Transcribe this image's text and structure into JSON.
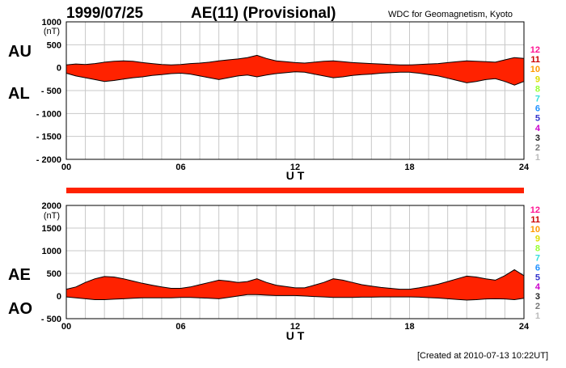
{
  "header": {
    "date": "1999/07/25",
    "title": "AE(11) (Provisional)",
    "source": "WDC for Geomagnetism, Kyoto"
  },
  "footer": {
    "created": "[Created at 2010-07-13 10:22UT]"
  },
  "station_legend": {
    "labels": [
      "12",
      "11",
      "10",
      "9",
      "8",
      "7",
      "6",
      "5",
      "4",
      "3",
      "2",
      "1"
    ],
    "colors": [
      "#ff1493",
      "#cc0000",
      "#ff9900",
      "#dddd00",
      "#99ff33",
      "#33dddd",
      "#1e90ff",
      "#3333cc",
      "#cc00cc",
      "#222222",
      "#777777",
      "#bbbbbb"
    ]
  },
  "chart_data": [
    {
      "type": "area",
      "panel": "AU/AL",
      "side_labels": [
        "AU",
        "AL"
      ],
      "unit_label": "(nT)",
      "xlabel": "U T",
      "x_ticks": [
        "00",
        "06",
        "12",
        "18",
        "24"
      ],
      "xlim": [
        0,
        24
      ],
      "ylim": [
        -2000,
        1000
      ],
      "y_ticks": [
        "1000",
        "500",
        "0",
        "- 500",
        "- 1000",
        "- 1500",
        "- 2000"
      ],
      "y_tick_values": [
        1000,
        500,
        0,
        -500,
        -1000,
        -1500,
        -2000
      ],
      "grid": true,
      "fill_color": "#ff2200",
      "x": [
        0,
        0.5,
        1,
        1.5,
        2,
        2.5,
        3,
        3.5,
        4,
        4.5,
        5,
        5.5,
        6,
        6.5,
        7,
        7.5,
        8,
        8.5,
        9,
        9.5,
        10,
        10.5,
        11,
        11.5,
        12,
        12.5,
        13,
        13.5,
        14,
        14.5,
        15,
        15.5,
        16,
        16.5,
        17,
        17.5,
        18,
        18.5,
        19,
        19.5,
        20,
        20.5,
        21,
        21.5,
        22,
        22.5,
        23,
        23.5,
        24
      ],
      "series": [
        {
          "name": "AU",
          "values": [
            60,
            80,
            70,
            90,
            120,
            140,
            150,
            140,
            110,
            90,
            70,
            60,
            70,
            90,
            100,
            120,
            150,
            170,
            190,
            220,
            270,
            200,
            150,
            130,
            110,
            100,
            120,
            140,
            150,
            130,
            110,
            100,
            90,
            80,
            70,
            60,
            60,
            70,
            80,
            90,
            110,
            130,
            150,
            140,
            130,
            120,
            170,
            220,
            200
          ]
        },
        {
          "name": "AL",
          "values": [
            -120,
            -180,
            -220,
            -260,
            -300,
            -280,
            -250,
            -220,
            -200,
            -170,
            -150,
            -130,
            -120,
            -140,
            -180,
            -220,
            -260,
            -220,
            -180,
            -160,
            -200,
            -160,
            -130,
            -110,
            -90,
            -100,
            -140,
            -180,
            -220,
            -200,
            -170,
            -150,
            -140,
            -120,
            -110,
            -100,
            -100,
            -120,
            -150,
            -180,
            -230,
            -280,
            -330,
            -300,
            -260,
            -240,
            -300,
            -380,
            -300
          ]
        }
      ]
    },
    {
      "type": "area",
      "panel": "AE/AO",
      "side_labels": [
        "AE",
        "AO"
      ],
      "unit_label": "(nT)",
      "xlabel": "U T",
      "x_ticks": [
        "00",
        "06",
        "12",
        "18",
        "24"
      ],
      "xlim": [
        0,
        24
      ],
      "ylim": [
        -500,
        2000
      ],
      "y_ticks": [
        "2000",
        "1500",
        "1000",
        "500",
        "0",
        "- 500"
      ],
      "y_tick_values": [
        2000,
        1500,
        1000,
        500,
        0,
        -500
      ],
      "grid": true,
      "fill_color": "#ff2200",
      "x": [
        0,
        0.5,
        1,
        1.5,
        2,
        2.5,
        3,
        3.5,
        4,
        4.5,
        5,
        5.5,
        6,
        6.5,
        7,
        7.5,
        8,
        8.5,
        9,
        9.5,
        10,
        10.5,
        11,
        11.5,
        12,
        12.5,
        13,
        13.5,
        14,
        14.5,
        15,
        15.5,
        16,
        16.5,
        17,
        17.5,
        18,
        18.5,
        19,
        19.5,
        20,
        20.5,
        21,
        21.5,
        22,
        22.5,
        23,
        23.5,
        24
      ],
      "series": [
        {
          "name": "AE",
          "values": [
            150,
            200,
            300,
            380,
            430,
            420,
            380,
            330,
            280,
            240,
            200,
            170,
            170,
            200,
            250,
            300,
            350,
            330,
            300,
            320,
            380,
            300,
            240,
            210,
            180,
            180,
            240,
            300,
            380,
            350,
            300,
            250,
            220,
            190,
            170,
            150,
            150,
            180,
            220,
            260,
            320,
            380,
            440,
            420,
            380,
            350,
            450,
            580,
            450
          ]
        },
        {
          "name": "AO",
          "values": [
            -20,
            -40,
            -60,
            -80,
            -80,
            -70,
            -60,
            -50,
            -40,
            -40,
            -40,
            -40,
            -30,
            -30,
            -40,
            -50,
            -60,
            -30,
            0,
            30,
            30,
            20,
            10,
            10,
            10,
            0,
            -10,
            -20,
            -30,
            -30,
            -30,
            -25,
            -25,
            -20,
            -20,
            -20,
            -20,
            -25,
            -35,
            -45,
            -60,
            -75,
            -90,
            -80,
            -65,
            -60,
            -65,
            -80,
            -50
          ]
        }
      ]
    }
  ]
}
